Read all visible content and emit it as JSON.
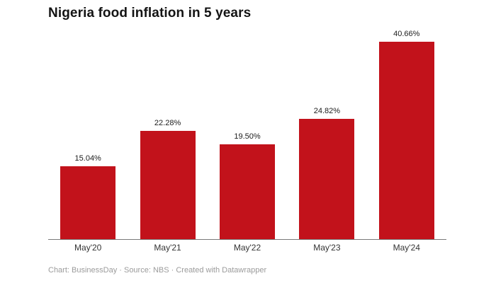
{
  "page": {
    "background": "#ffffff"
  },
  "header": {
    "title": "Nigeria food inflation in 5 years"
  },
  "footer": {
    "text": "Chart: BusinessDay · Source: NBS · Created with Datawrapper"
  },
  "chart_data": {
    "type": "bar",
    "title": "Nigeria food inflation in 5 years",
    "categories": [
      "May'20",
      "May'21",
      "May'22",
      "May'23",
      "May'24"
    ],
    "values": [
      15.04,
      22.28,
      19.5,
      24.82,
      40.66
    ],
    "value_labels": [
      "15.04%",
      "22.28%",
      "19.50%",
      "24.82%",
      "40.66%"
    ],
    "xlabel": "",
    "ylabel": "",
    "ylim": [
      0,
      42
    ],
    "grid": false,
    "legend": false,
    "bar_color": "#c2121b",
    "axis_color": "#7a7a7a",
    "value_label_position": "above-bar",
    "tick_label_position": "below-axis"
  }
}
